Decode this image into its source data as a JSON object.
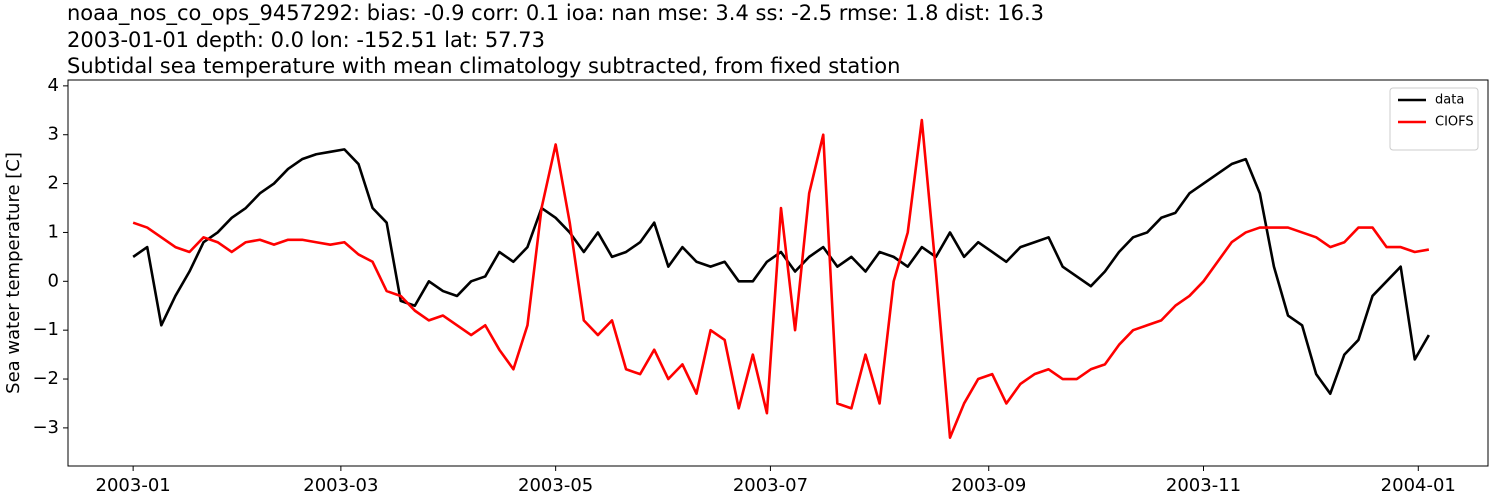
{
  "chart_data": {
    "type": "line",
    "title_lines": [
      "noaa_nos_co_ops_9457292: bias: -0.9  corr: 0.1  ioa: nan  mse: 3.4  ss: -2.5  rmse: 1.8  dist: 16.3",
      "2003-01-01 depth: 0.0 lon: -152.51 lat: 57.73",
      "Subtidal sea temperature with mean climatology subtracted, from fixed station"
    ],
    "ylabel": "Sea water temperature [C]",
    "x": [
      0,
      4,
      8,
      12,
      16,
      20,
      24,
      28,
      32,
      36,
      40,
      44,
      48,
      52,
      56,
      60,
      64,
      68,
      72,
      76,
      80,
      84,
      88,
      92,
      96,
      100,
      104,
      108,
      112,
      116,
      120,
      124,
      128,
      132,
      136,
      140,
      144,
      148,
      152,
      156,
      160,
      164,
      168,
      172,
      176,
      180,
      184,
      188,
      192,
      196,
      200,
      204,
      208,
      212,
      216,
      220,
      224,
      228,
      232,
      236,
      240,
      244,
      248,
      252,
      256,
      260,
      264,
      268,
      272,
      276,
      280,
      284,
      288,
      292,
      296,
      300,
      304,
      308,
      312,
      316,
      320,
      324,
      328,
      332,
      336,
      340,
      344,
      348,
      352,
      356,
      360,
      364,
      368
    ],
    "series": [
      {
        "name": "data",
        "color": "#000000",
        "values": [
          0.5,
          0.7,
          -0.9,
          -0.3,
          0.2,
          0.8,
          1.0,
          1.3,
          1.5,
          1.8,
          2.0,
          2.3,
          2.5,
          2.6,
          2.65,
          2.7,
          2.4,
          1.5,
          1.2,
          -0.4,
          -0.5,
          0.0,
          -0.2,
          -0.3,
          0.0,
          0.1,
          0.6,
          0.4,
          0.7,
          1.5,
          1.3,
          1.0,
          0.6,
          1.0,
          0.5,
          0.6,
          0.8,
          1.2,
          0.3,
          0.7,
          0.4,
          0.3,
          0.4,
          0.0,
          0.0,
          0.4,
          0.6,
          0.2,
          0.5,
          0.7,
          0.3,
          0.5,
          0.2,
          0.6,
          0.5,
          0.3,
          0.7,
          0.5,
          1.0,
          0.5,
          0.8,
          0.6,
          0.4,
          0.7,
          0.8,
          0.9,
          0.3,
          0.1,
          -0.1,
          0.2,
          0.6,
          0.9,
          1.0,
          1.3,
          1.4,
          1.8,
          2.0,
          2.2,
          2.4,
          2.5,
          1.8,
          0.3,
          -0.7,
          -0.9,
          -1.9,
          -2.3,
          -1.5,
          -1.2,
          -0.3,
          0.0,
          0.3,
          -1.6,
          -1.1
        ]
      },
      {
        "name": "CIOFS",
        "color": "#ff0000",
        "values": [
          1.2,
          1.1,
          0.9,
          0.7,
          0.6,
          0.9,
          0.8,
          0.6,
          0.8,
          0.85,
          0.75,
          0.85,
          0.85,
          0.8,
          0.75,
          0.8,
          0.55,
          0.4,
          -0.2,
          -0.3,
          -0.6,
          -0.8,
          -0.7,
          -0.9,
          -1.1,
          -0.9,
          -1.4,
          -1.8,
          -0.9,
          1.5,
          2.8,
          1.2,
          -0.8,
          -1.1,
          -0.8,
          -1.8,
          -1.9,
          -1.4,
          -2.0,
          -1.7,
          -2.3,
          -1.0,
          -1.2,
          -2.6,
          -1.5,
          -2.7,
          1.5,
          -1.0,
          1.8,
          3.0,
          -2.5,
          -2.6,
          -1.5,
          -2.5,
          0.0,
          1.0,
          3.3,
          0.2,
          -3.2,
          -2.5,
          -2.0,
          -1.9,
          -2.5,
          -2.1,
          -1.9,
          -1.8,
          -2.0,
          -2.0,
          -1.8,
          -1.7,
          -1.3,
          -1.0,
          -0.9,
          -0.8,
          -0.5,
          -0.3,
          0.0,
          0.4,
          0.8,
          1.0,
          1.1,
          1.1,
          1.1,
          1.0,
          0.9,
          0.7,
          0.8,
          1.1,
          1.1,
          0.7,
          0.7,
          0.6,
          0.65
        ]
      }
    ],
    "xlim": [
      -18.5,
      384.8
    ],
    "xticks": [
      {
        "value": 0,
        "label": "2003-01"
      },
      {
        "value": 59,
        "label": "2003-03"
      },
      {
        "value": 120,
        "label": "2003-05"
      },
      {
        "value": 181,
        "label": "2003-07"
      },
      {
        "value": 243,
        "label": "2003-09"
      },
      {
        "value": 304,
        "label": "2003-11"
      },
      {
        "value": 365,
        "label": "2004-01"
      }
    ],
    "ylim": [
      -3.78,
      4.12
    ],
    "yticks": [
      {
        "value": -3,
        "label": "−3"
      },
      {
        "value": -2,
        "label": "−2"
      },
      {
        "value": -1,
        "label": "−1"
      },
      0,
      1,
      2,
      3,
      4
    ],
    "grid": false,
    "legend": "upper right"
  }
}
